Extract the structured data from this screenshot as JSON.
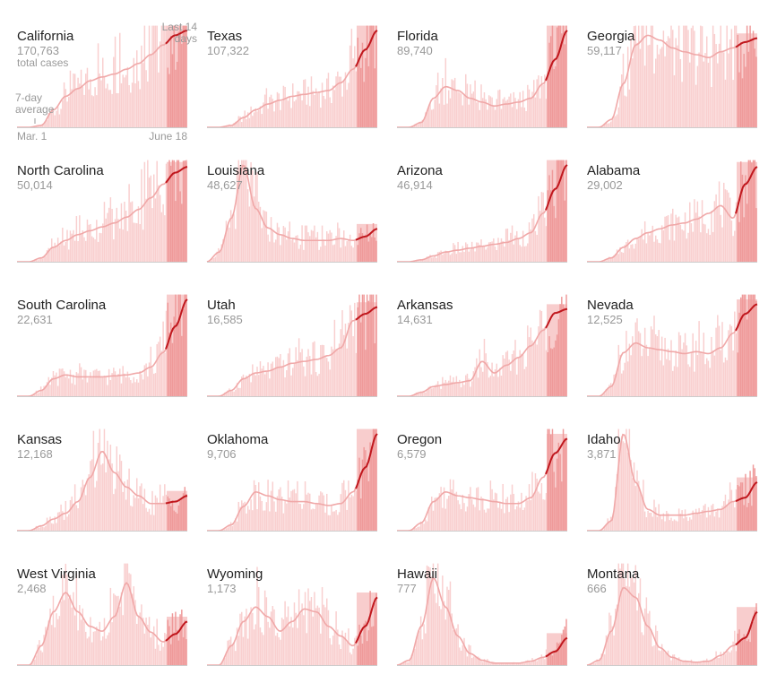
{
  "annotations": {
    "total_cases_label": "total cases",
    "last14_line1": "Last 14",
    "last14_line2": "days",
    "avg_line1": "7-day",
    "avg_line2": "average",
    "start_date": "Mar. 1",
    "end_date": "June 18"
  },
  "colors": {
    "bar": "#f9cfcf",
    "bar_recent": "#ef9a9a",
    "recent_band": "#f7c4c4",
    "avg_line": "#f0a8a8",
    "avg_line_recent": "#c0171d",
    "baseline": "#cccccc"
  },
  "chart_data": {
    "type": "bar",
    "x_range": [
      "Mar. 1",
      "June 18"
    ],
    "recent_window_days": 14,
    "series_values": "shape of daily new cases, normalized 0-1 relative to each state's peak (shared y-scale not given)",
    "states": [
      {
        "name": "California",
        "cases": "170,763",
        "curve": [
          0,
          0,
          0.02,
          0.18,
          0.32,
          0.4,
          0.48,
          0.52,
          0.55,
          0.6,
          0.66,
          0.75,
          0.85,
          0.95,
          1.0
        ]
      },
      {
        "name": "Texas",
        "cases": "107,322",
        "curve": [
          0,
          0,
          0.02,
          0.1,
          0.18,
          0.24,
          0.28,
          0.32,
          0.34,
          0.36,
          0.38,
          0.46,
          0.6,
          0.8,
          1.0
        ]
      },
      {
        "name": "Florida",
        "cases": "89,740",
        "curve": [
          0,
          0,
          0.05,
          0.3,
          0.42,
          0.38,
          0.3,
          0.26,
          0.22,
          0.24,
          0.26,
          0.3,
          0.45,
          0.7,
          1.0
        ]
      },
      {
        "name": "Georgia",
        "cases": "59,117",
        "curve": [
          0,
          0,
          0.08,
          0.45,
          0.85,
          0.95,
          0.9,
          0.82,
          0.78,
          0.75,
          0.72,
          0.78,
          0.82,
          0.88,
          0.92
        ]
      },
      {
        "name": "North Carolina",
        "cases": "50,014",
        "curve": [
          0,
          0,
          0.04,
          0.15,
          0.22,
          0.28,
          0.32,
          0.36,
          0.4,
          0.46,
          0.54,
          0.66,
          0.8,
          0.92,
          0.98
        ]
      },
      {
        "name": "Louisiana",
        "cases": "48,627",
        "curve": [
          0,
          0.1,
          0.45,
          1.0,
          0.55,
          0.35,
          0.28,
          0.24,
          0.22,
          0.22,
          0.22,
          0.24,
          0.22,
          0.26,
          0.34
        ]
      },
      {
        "name": "Arizona",
        "cases": "46,914",
        "curve": [
          0,
          0,
          0.02,
          0.06,
          0.1,
          0.12,
          0.14,
          0.16,
          0.18,
          0.2,
          0.24,
          0.3,
          0.5,
          0.75,
          1.0
        ]
      },
      {
        "name": "Alabama",
        "cases": "29,002",
        "curve": [
          0,
          0,
          0.04,
          0.15,
          0.24,
          0.3,
          0.34,
          0.38,
          0.4,
          0.44,
          0.5,
          0.58,
          0.45,
          0.8,
          0.98
        ]
      },
      {
        "name": "South Carolina",
        "cases": "22,631",
        "curve": [
          0,
          0,
          0.06,
          0.18,
          0.22,
          0.2,
          0.2,
          0.2,
          0.21,
          0.22,
          0.24,
          0.3,
          0.45,
          0.72,
          1.0
        ]
      },
      {
        "name": "Utah",
        "cases": "16,585",
        "curve": [
          0,
          0,
          0.06,
          0.18,
          0.24,
          0.26,
          0.3,
          0.34,
          0.36,
          0.38,
          0.42,
          0.5,
          0.78,
          0.85,
          0.92
        ]
      },
      {
        "name": "Arkansas",
        "cases": "14,631",
        "curve": [
          0,
          0,
          0.04,
          0.1,
          0.12,
          0.14,
          0.16,
          0.36,
          0.24,
          0.32,
          0.4,
          0.52,
          0.68,
          0.86,
          0.9
        ]
      },
      {
        "name": "Nevada",
        "cases": "12,525",
        "curve": [
          0,
          0,
          0.1,
          0.45,
          0.55,
          0.5,
          0.48,
          0.46,
          0.44,
          0.46,
          0.44,
          0.5,
          0.65,
          0.85,
          0.95
        ]
      },
      {
        "name": "Kansas",
        "cases": "12,168",
        "curve": [
          0,
          0,
          0.05,
          0.12,
          0.18,
          0.3,
          0.55,
          0.82,
          0.6,
          0.45,
          0.36,
          0.28,
          0.28,
          0.3,
          0.36
        ]
      },
      {
        "name": "Oklahoma",
        "cases": "9,706",
        "curve": [
          0,
          0,
          0.06,
          0.25,
          0.4,
          0.36,
          0.32,
          0.3,
          0.3,
          0.28,
          0.26,
          0.28,
          0.4,
          0.65,
          1.0
        ]
      },
      {
        "name": "Oregon",
        "cases": "6,579",
        "curve": [
          0,
          0,
          0.08,
          0.3,
          0.4,
          0.36,
          0.34,
          0.32,
          0.3,
          0.28,
          0.28,
          0.34,
          0.55,
          0.8,
          0.95
        ]
      },
      {
        "name": "Idaho",
        "cases": "3,871",
        "curve": [
          0,
          0,
          0.1,
          1.0,
          0.5,
          0.22,
          0.16,
          0.16,
          0.16,
          0.18,
          0.2,
          0.22,
          0.3,
          0.34,
          0.5
        ]
      },
      {
        "name": "West Virginia",
        "cases": "2,468",
        "curve": [
          0,
          0,
          0.2,
          0.55,
          0.75,
          0.55,
          0.4,
          0.35,
          0.5,
          0.85,
          0.5,
          0.34,
          0.24,
          0.32,
          0.45
        ]
      },
      {
        "name": "Wyoming",
        "cases": "1,173",
        "curve": [
          0,
          0,
          0.2,
          0.45,
          0.6,
          0.5,
          0.35,
          0.45,
          0.58,
          0.55,
          0.4,
          0.3,
          0.2,
          0.4,
          0.7
        ]
      },
      {
        "name": "Hawaii",
        "cases": "777",
        "curve": [
          0,
          0.05,
          0.4,
          0.9,
          0.6,
          0.3,
          0.12,
          0.05,
          0.02,
          0.02,
          0.02,
          0.04,
          0.08,
          0.14,
          0.28
        ]
      },
      {
        "name": "Montana",
        "cases": "666",
        "curve": [
          0,
          0.05,
          0.35,
          0.8,
          0.7,
          0.4,
          0.18,
          0.08,
          0.04,
          0.03,
          0.04,
          0.1,
          0.2,
          0.28,
          0.55
        ]
      }
    ]
  }
}
